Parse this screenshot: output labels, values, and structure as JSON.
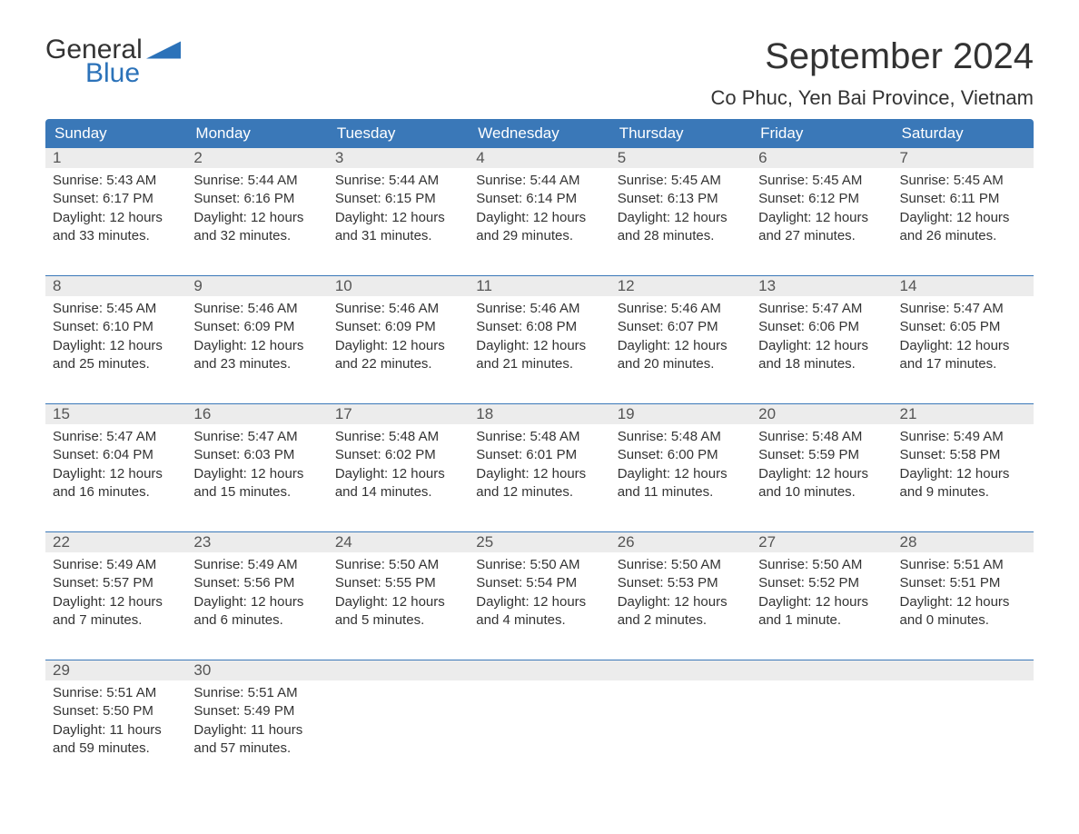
{
  "logo": {
    "word1": "General",
    "word2": "Blue"
  },
  "title": "September 2024",
  "location": "Co Phuc, Yen Bai Province, Vietnam",
  "colors": {
    "header_bg": "#3a78b8",
    "header_text": "#ffffff",
    "daynum_bg": "#ececec",
    "border": "#3a78b8",
    "logo_blue": "#2b72b9",
    "text": "#333333"
  },
  "day_headers": [
    "Sunday",
    "Monday",
    "Tuesday",
    "Wednesday",
    "Thursday",
    "Friday",
    "Saturday"
  ],
  "labels": {
    "sunrise_prefix": "Sunrise: ",
    "sunset_prefix": "Sunset: ",
    "daylight_prefix": "Daylight: "
  },
  "weeks": [
    [
      {
        "n": "1",
        "sunrise": "5:43 AM",
        "sunset": "6:17 PM",
        "daylight": "12 hours and 33 minutes."
      },
      {
        "n": "2",
        "sunrise": "5:44 AM",
        "sunset": "6:16 PM",
        "daylight": "12 hours and 32 minutes."
      },
      {
        "n": "3",
        "sunrise": "5:44 AM",
        "sunset": "6:15 PM",
        "daylight": "12 hours and 31 minutes."
      },
      {
        "n": "4",
        "sunrise": "5:44 AM",
        "sunset": "6:14 PM",
        "daylight": "12 hours and 29 minutes."
      },
      {
        "n": "5",
        "sunrise": "5:45 AM",
        "sunset": "6:13 PM",
        "daylight": "12 hours and 28 minutes."
      },
      {
        "n": "6",
        "sunrise": "5:45 AM",
        "sunset": "6:12 PM",
        "daylight": "12 hours and 27 minutes."
      },
      {
        "n": "7",
        "sunrise": "5:45 AM",
        "sunset": "6:11 PM",
        "daylight": "12 hours and 26 minutes."
      }
    ],
    [
      {
        "n": "8",
        "sunrise": "5:45 AM",
        "sunset": "6:10 PM",
        "daylight": "12 hours and 25 minutes."
      },
      {
        "n": "9",
        "sunrise": "5:46 AM",
        "sunset": "6:09 PM",
        "daylight": "12 hours and 23 minutes."
      },
      {
        "n": "10",
        "sunrise": "5:46 AM",
        "sunset": "6:09 PM",
        "daylight": "12 hours and 22 minutes."
      },
      {
        "n": "11",
        "sunrise": "5:46 AM",
        "sunset": "6:08 PM",
        "daylight": "12 hours and 21 minutes."
      },
      {
        "n": "12",
        "sunrise": "5:46 AM",
        "sunset": "6:07 PM",
        "daylight": "12 hours and 20 minutes."
      },
      {
        "n": "13",
        "sunrise": "5:47 AM",
        "sunset": "6:06 PM",
        "daylight": "12 hours and 18 minutes."
      },
      {
        "n": "14",
        "sunrise": "5:47 AM",
        "sunset": "6:05 PM",
        "daylight": "12 hours and 17 minutes."
      }
    ],
    [
      {
        "n": "15",
        "sunrise": "5:47 AM",
        "sunset": "6:04 PM",
        "daylight": "12 hours and 16 minutes."
      },
      {
        "n": "16",
        "sunrise": "5:47 AM",
        "sunset": "6:03 PM",
        "daylight": "12 hours and 15 minutes."
      },
      {
        "n": "17",
        "sunrise": "5:48 AM",
        "sunset": "6:02 PM",
        "daylight": "12 hours and 14 minutes."
      },
      {
        "n": "18",
        "sunrise": "5:48 AM",
        "sunset": "6:01 PM",
        "daylight": "12 hours and 12 minutes."
      },
      {
        "n": "19",
        "sunrise": "5:48 AM",
        "sunset": "6:00 PM",
        "daylight": "12 hours and 11 minutes."
      },
      {
        "n": "20",
        "sunrise": "5:48 AM",
        "sunset": "5:59 PM",
        "daylight": "12 hours and 10 minutes."
      },
      {
        "n": "21",
        "sunrise": "5:49 AM",
        "sunset": "5:58 PM",
        "daylight": "12 hours and 9 minutes."
      }
    ],
    [
      {
        "n": "22",
        "sunrise": "5:49 AM",
        "sunset": "5:57 PM",
        "daylight": "12 hours and 7 minutes."
      },
      {
        "n": "23",
        "sunrise": "5:49 AM",
        "sunset": "5:56 PM",
        "daylight": "12 hours and 6 minutes."
      },
      {
        "n": "24",
        "sunrise": "5:50 AM",
        "sunset": "5:55 PM",
        "daylight": "12 hours and 5 minutes."
      },
      {
        "n": "25",
        "sunrise": "5:50 AM",
        "sunset": "5:54 PM",
        "daylight": "12 hours and 4 minutes."
      },
      {
        "n": "26",
        "sunrise": "5:50 AM",
        "sunset": "5:53 PM",
        "daylight": "12 hours and 2 minutes."
      },
      {
        "n": "27",
        "sunrise": "5:50 AM",
        "sunset": "5:52 PM",
        "daylight": "12 hours and 1 minute."
      },
      {
        "n": "28",
        "sunrise": "5:51 AM",
        "sunset": "5:51 PM",
        "daylight": "12 hours and 0 minutes."
      }
    ],
    [
      {
        "n": "29",
        "sunrise": "5:51 AM",
        "sunset": "5:50 PM",
        "daylight": "11 hours and 59 minutes."
      },
      {
        "n": "30",
        "sunrise": "5:51 AM",
        "sunset": "5:49 PM",
        "daylight": "11 hours and 57 minutes."
      },
      null,
      null,
      null,
      null,
      null
    ]
  ]
}
